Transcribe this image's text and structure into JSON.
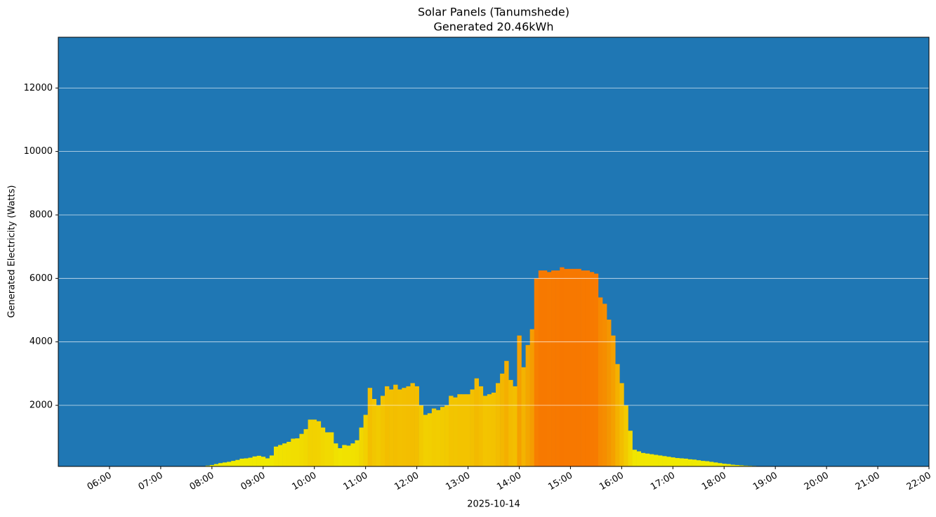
{
  "chart_data": {
    "type": "bar",
    "title": "Solar Panels (Tanumshede)",
    "subtitle": "Generated 20.46kWh",
    "x_label": "2025-10-14",
    "y_label": "Generated Electricity (Watts)",
    "background": "#1f77b4",
    "colormap": [
      "#f0f000",
      "#f77700"
    ],
    "grid": true,
    "xlim": [
      "05:00",
      "22:00"
    ],
    "xticks": [
      "06:00",
      "07:00",
      "08:00",
      "09:00",
      "10:00",
      "11:00",
      "12:00",
      "13:00",
      "14:00",
      "15:00",
      "16:00",
      "17:00",
      "18:00",
      "19:00",
      "20:00",
      "21:00",
      "22:00"
    ],
    "ylim": [
      75,
      13600
    ],
    "yticks": [
      2000,
      4000,
      6000,
      8000,
      10000,
      12000
    ],
    "x": [
      "07:50",
      "07:55",
      "08:00",
      "08:05",
      "08:10",
      "08:15",
      "08:20",
      "08:25",
      "08:30",
      "08:35",
      "08:40",
      "08:45",
      "08:50",
      "08:55",
      "09:00",
      "09:05",
      "09:10",
      "09:15",
      "09:20",
      "09:25",
      "09:30",
      "09:35",
      "09:40",
      "09:45",
      "09:50",
      "09:55",
      "10:00",
      "10:05",
      "10:10",
      "10:15",
      "10:20",
      "10:25",
      "10:30",
      "10:35",
      "10:40",
      "10:45",
      "10:50",
      "10:55",
      "11:00",
      "11:05",
      "11:10",
      "11:15",
      "11:20",
      "11:25",
      "11:30",
      "11:35",
      "11:40",
      "11:45",
      "11:50",
      "11:55",
      "12:00",
      "12:05",
      "12:10",
      "12:15",
      "12:20",
      "12:25",
      "12:30",
      "12:35",
      "12:40",
      "12:45",
      "12:50",
      "12:55",
      "13:00",
      "13:05",
      "13:10",
      "13:15",
      "13:20",
      "13:25",
      "13:30",
      "13:35",
      "13:40",
      "13:45",
      "13:50",
      "13:55",
      "14:00",
      "14:05",
      "14:10",
      "14:15",
      "14:20",
      "14:25",
      "14:30",
      "14:35",
      "14:40",
      "14:45",
      "14:50",
      "14:55",
      "15:00",
      "15:05",
      "15:10",
      "15:15",
      "15:20",
      "15:25",
      "15:30",
      "15:35",
      "15:40",
      "15:45",
      "15:50",
      "15:55",
      "16:00",
      "16:05",
      "16:10",
      "16:15",
      "16:20",
      "16:25",
      "16:30",
      "16:35",
      "16:40",
      "16:45",
      "16:50",
      "16:55",
      "17:00",
      "17:05",
      "17:10",
      "17:15",
      "17:20",
      "17:25",
      "17:30",
      "17:35",
      "17:40",
      "17:45",
      "17:50",
      "17:55",
      "18:00",
      "18:05",
      "18:10",
      "18:15",
      "18:20",
      "18:25",
      "18:30",
      "18:35",
      "18:40",
      "18:45"
    ],
    "values": [
      80,
      100,
      120,
      150,
      180,
      200,
      220,
      250,
      280,
      320,
      330,
      350,
      390,
      410,
      380,
      330,
      420,
      700,
      750,
      800,
      850,
      950,
      960,
      1100,
      1250,
      1550,
      1550,
      1500,
      1300,
      1150,
      1150,
      800,
      650,
      750,
      730,
      800,
      900,
      1300,
      1700,
      2550,
      2200,
      2000,
      2300,
      2600,
      2500,
      2650,
      2500,
      2550,
      2600,
      2700,
      2600,
      2000,
      1700,
      1750,
      1900,
      1850,
      1950,
      2000,
      2300,
      2250,
      2350,
      2350,
      2350,
      2500,
      2850,
      2600,
      2300,
      2350,
      2400,
      2700,
      3000,
      3400,
      2800,
      2600,
      4200,
      3200,
      3900,
      4400,
      6000,
      6250,
      6250,
      6200,
      6250,
      6250,
      6350,
      6300,
      6300,
      6300,
      6300,
      6250,
      6250,
      6200,
      6150,
      5400,
      5200,
      4700,
      4200,
      3300,
      2700,
      2000,
      1200,
      600,
      550,
      500,
      480,
      460,
      440,
      420,
      400,
      380,
      360,
      340,
      330,
      320,
      300,
      290,
      270,
      250,
      240,
      220,
      200,
      180,
      160,
      150,
      130,
      120,
      110,
      100,
      95,
      90,
      85,
      80
    ]
  }
}
